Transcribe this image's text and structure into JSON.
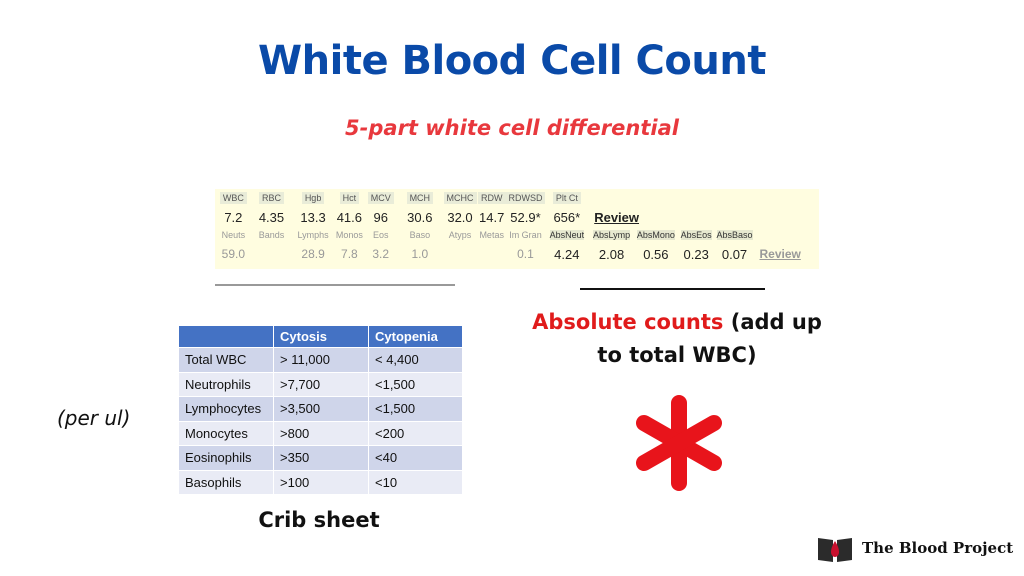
{
  "title": "White Blood Cell Count",
  "subtitle": "5-part white cell differential",
  "lab": {
    "row1_headers": [
      "WBC",
      "RBC",
      "Hgb",
      "Hct",
      "MCV",
      "MCH",
      "MCHC",
      "RDW",
      "RDWSD",
      "Plt Ct"
    ],
    "row1_values": [
      "7.2",
      "4.35",
      "13.3",
      "41.6",
      "96",
      "30.6",
      "32.0",
      "14.7",
      "52.9*",
      "656*"
    ],
    "row1_review": "Review",
    "row2_headers": [
      "Neuts",
      "Bands",
      "Lymphs",
      "Monos",
      "Eos",
      "Baso",
      "Atyps",
      "Metas",
      "Im Gran",
      "AbsNeut",
      "AbsLymp",
      "AbsMono",
      "AbsEos",
      "AbsBaso"
    ],
    "row2_values": [
      "59.0",
      "",
      "28.9",
      "7.8",
      "3.2",
      "1.0",
      "",
      "",
      "0.1",
      "4.24",
      "2.08",
      "0.56",
      "0.23",
      "0.07"
    ],
    "row2_review": "Review"
  },
  "abs_note": {
    "highlight": "Absolute counts",
    "rest_line1": " (add up",
    "line2": "to total WBC)"
  },
  "crib": {
    "headers": [
      "",
      "Cytosis",
      "Cytopenia"
    ],
    "rows": [
      [
        "Total WBC",
        "> 11,000",
        "< 4,400"
      ],
      [
        "Neutrophils",
        ">7,700",
        "<1,500"
      ],
      [
        "Lymphocytes",
        ">3,500",
        "<1,500"
      ],
      [
        "Monocytes",
        ">800",
        "<200"
      ],
      [
        "Eosinophils",
        ">350",
        "<40"
      ],
      [
        "Basophils",
        ">100",
        "<10"
      ]
    ],
    "label": "Crib sheet"
  },
  "per_ul": "(per ul)",
  "brand": {
    "name": "The Blood Project"
  },
  "colors": {
    "title": "#0a4aa8",
    "subtitle": "#e8383d",
    "asterisk": "#e8141b",
    "table_header": "#4472c4",
    "abs_highlight": "#e01b1b"
  },
  "icons": {
    "asterisk": "asterisk-icon",
    "brand": "book-drop-icon"
  }
}
